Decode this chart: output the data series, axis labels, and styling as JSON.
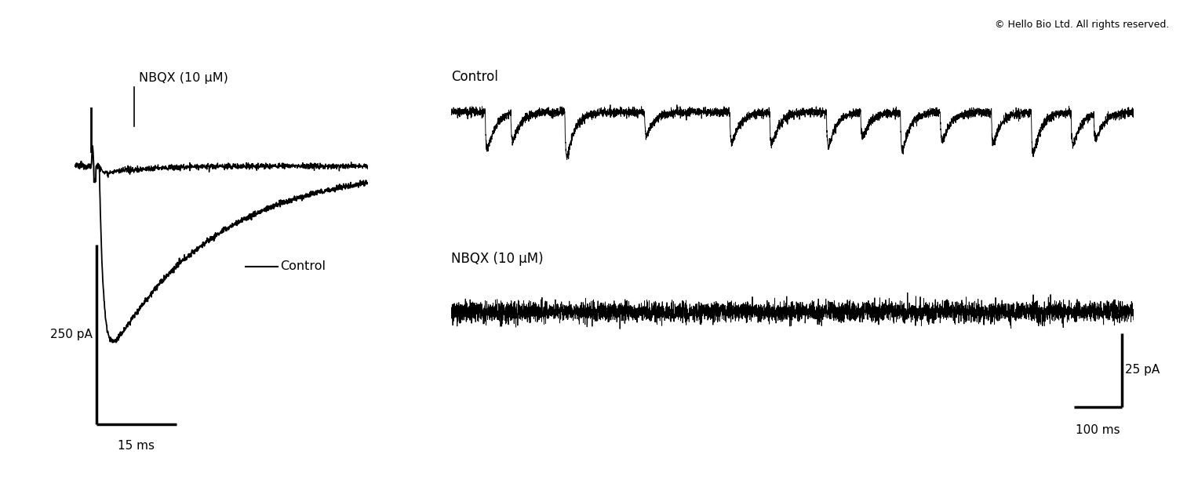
{
  "copyright_text": "© Hello Bio Ltd. All rights reserved.",
  "left_panel": {
    "nbqx_label": "NBQX (10 μM)",
    "control_label": "Control",
    "scalebar_pa": "250 pA",
    "scalebar_ms": "15 ms"
  },
  "right_panel": {
    "control_label": "Control",
    "nbqx_label": "NBQX (10 μM)",
    "scalebar_pa": "25 pA",
    "scalebar_ms": "100 ms"
  },
  "bg_color": "#ffffff",
  "trace_color": "#000000"
}
